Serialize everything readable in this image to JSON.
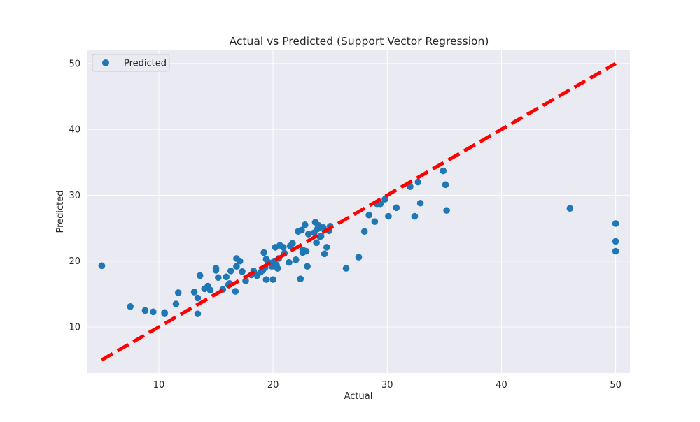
{
  "chart_data": {
    "type": "scatter",
    "title": "Actual vs Predicted (Support Vector Regression)",
    "xlabel": "Actual",
    "ylabel": "Predicted",
    "xlim": [
      3.75,
      51.25
    ],
    "ylim": [
      3.0,
      52.0
    ],
    "xticks": [
      10,
      20,
      30,
      40,
      50
    ],
    "yticks": [
      10,
      20,
      30,
      40,
      50
    ],
    "grid": true,
    "legend": {
      "placement": "top-left",
      "entries": [
        "Predicted"
      ]
    },
    "colors": {
      "points": "#1f77b4",
      "reference_line": "#ff0000",
      "plot_background": "#eaeaf2",
      "grid": "#ffffff"
    },
    "series": [
      {
        "name": "Predicted",
        "kind": "scatter",
        "points": [
          [
            5.0,
            19.3
          ],
          [
            7.5,
            13.1
          ],
          [
            8.8,
            12.5
          ],
          [
            9.5,
            12.3
          ],
          [
            10.5,
            12.2
          ],
          [
            10.5,
            12.0
          ],
          [
            11.5,
            13.5
          ],
          [
            11.7,
            15.2
          ],
          [
            13.1,
            15.3
          ],
          [
            13.4,
            14.4
          ],
          [
            13.4,
            12.0
          ],
          [
            13.6,
            17.8
          ],
          [
            14.0,
            15.8
          ],
          [
            14.3,
            16.2
          ],
          [
            14.5,
            15.6
          ],
          [
            15.0,
            18.6
          ],
          [
            15.0,
            18.9
          ],
          [
            15.2,
            17.5
          ],
          [
            15.6,
            15.7
          ],
          [
            15.9,
            17.6
          ],
          [
            16.1,
            16.4
          ],
          [
            16.2,
            16.6
          ],
          [
            16.3,
            18.5
          ],
          [
            16.7,
            15.4
          ],
          [
            16.8,
            19.2
          ],
          [
            16.8,
            20.4
          ],
          [
            17.1,
            20.0
          ],
          [
            17.3,
            18.4
          ],
          [
            17.6,
            17.0
          ],
          [
            18.1,
            17.9
          ],
          [
            18.3,
            18.5
          ],
          [
            18.6,
            17.8
          ],
          [
            18.9,
            18.3
          ],
          [
            19.1,
            18.6
          ],
          [
            19.3,
            19.0
          ],
          [
            19.2,
            21.3
          ],
          [
            19.4,
            20.3
          ],
          [
            19.4,
            17.2
          ],
          [
            19.6,
            19.8
          ],
          [
            19.9,
            19.2
          ],
          [
            20.0,
            17.2
          ],
          [
            20.1,
            20.0
          ],
          [
            20.2,
            22.1
          ],
          [
            20.3,
            19.4
          ],
          [
            20.4,
            18.9
          ],
          [
            20.5,
            20.4
          ],
          [
            20.6,
            22.4
          ],
          [
            20.9,
            22.1
          ],
          [
            21.0,
            21.2
          ],
          [
            21.4,
            19.8
          ],
          [
            21.5,
            22.3
          ],
          [
            21.7,
            22.7
          ],
          [
            22.0,
            20.2
          ],
          [
            22.2,
            24.5
          ],
          [
            22.4,
            17.3
          ],
          [
            22.5,
            24.7
          ],
          [
            22.6,
            21.7
          ],
          [
            22.6,
            21.3
          ],
          [
            22.8,
            25.5
          ],
          [
            22.9,
            21.5
          ],
          [
            23.0,
            19.2
          ],
          [
            23.1,
            24.1
          ],
          [
            23.6,
            24.3
          ],
          [
            23.7,
            25.9
          ],
          [
            23.8,
            22.8
          ],
          [
            23.9,
            24.9
          ],
          [
            24.0,
            25.4
          ],
          [
            24.1,
            23.7
          ],
          [
            24.2,
            23.8
          ],
          [
            24.4,
            25.1
          ],
          [
            24.5,
            21.1
          ],
          [
            24.7,
            22.1
          ],
          [
            24.9,
            24.6
          ],
          [
            25.0,
            25.3
          ],
          [
            26.4,
            18.9
          ],
          [
            27.5,
            20.6
          ],
          [
            28.0,
            24.5
          ],
          [
            28.4,
            27.0
          ],
          [
            28.9,
            26.0
          ],
          [
            29.1,
            28.7
          ],
          [
            29.4,
            28.7
          ],
          [
            29.8,
            29.4
          ],
          [
            30.1,
            26.8
          ],
          [
            30.8,
            28.1
          ],
          [
            32.0,
            31.3
          ],
          [
            32.4,
            26.8
          ],
          [
            32.7,
            32.0
          ],
          [
            32.9,
            28.8
          ],
          [
            34.9,
            33.7
          ],
          [
            35.1,
            31.6
          ],
          [
            35.2,
            27.7
          ],
          [
            46.0,
            28.0
          ],
          [
            50.0,
            25.7
          ],
          [
            50.0,
            23.0
          ],
          [
            50.0,
            21.5
          ]
        ]
      },
      {
        "kind": "dashed-line",
        "points": [
          [
            5.0,
            5.0
          ],
          [
            50.0,
            50.0
          ]
        ]
      }
    ]
  }
}
